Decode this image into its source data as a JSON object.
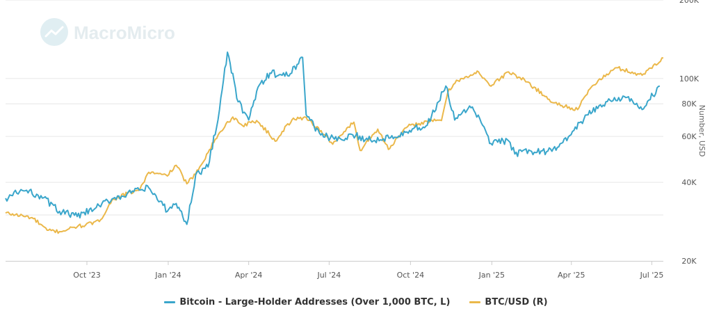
{
  "watermark": {
    "text": "MacroMicro"
  },
  "colors": {
    "holders": "#3aa6cb",
    "btc": "#ebb84a",
    "grid": "#e6e6e6",
    "axis": "#cccccc"
  },
  "chart_data": {
    "type": "line",
    "title": "",
    "x_tick_labels": [
      "Oct '23",
      "Jan '24",
      "Apr '24",
      "Jul '24",
      "Oct '24",
      "Jan '25",
      "Apr '25",
      "Jul '25"
    ],
    "x_range": [
      "2023-07-01",
      "2025-07-14"
    ],
    "right_axis": {
      "label": "Number, USD",
      "scale": "log",
      "range": [
        20000,
        200000
      ],
      "tick_labels": [
        {
          "value": 20000,
          "label": "20K"
        },
        {
          "value": 40000,
          "label": "40K"
        },
        {
          "value": 60000,
          "label": "60K"
        },
        {
          "value": 80000,
          "label": "80K"
        },
        {
          "value": 100000,
          "label": "100K"
        },
        {
          "value": 200000,
          "label": "200K"
        }
      ]
    },
    "series": [
      {
        "name": "Bitcoin - Large-Holder Addresses (Over 1,000 BTC, L)",
        "color": "#3aa6cb",
        "axis": "left",
        "points": [
          [
            "2023-07-01",
            2000
          ],
          [
            "2023-07-20",
            2015
          ],
          [
            "2023-08-10",
            2005
          ],
          [
            "2023-08-31",
            1975
          ],
          [
            "2023-09-20",
            1965
          ],
          [
            "2023-10-10",
            1980
          ],
          [
            "2023-10-31",
            2000
          ],
          [
            "2023-11-20",
            2010
          ],
          [
            "2023-12-10",
            2020
          ],
          [
            "2023-12-31",
            1975
          ],
          [
            "2024-01-10",
            1990
          ],
          [
            "2024-01-22",
            1950
          ],
          [
            "2024-02-01",
            2045
          ],
          [
            "2024-02-15",
            2060
          ],
          [
            "2024-02-28",
            2170
          ],
          [
            "2024-03-08",
            2280
          ],
          [
            "2024-03-20",
            2185
          ],
          [
            "2024-03-27",
            2165
          ],
          [
            "2024-04-01",
            2150
          ],
          [
            "2024-04-10",
            2205
          ],
          [
            "2024-04-25",
            2240
          ],
          [
            "2024-05-15",
            2235
          ],
          [
            "2024-06-01",
            2270
          ],
          [
            "2024-06-05",
            2160
          ],
          [
            "2024-06-20",
            2125
          ],
          [
            "2024-07-10",
            2110
          ],
          [
            "2024-07-31",
            2120
          ],
          [
            "2024-08-20",
            2110
          ],
          [
            "2024-09-10",
            2120
          ],
          [
            "2024-09-30",
            2130
          ],
          [
            "2024-10-20",
            2140
          ],
          [
            "2024-11-10",
            2215
          ],
          [
            "2024-11-20",
            2150
          ],
          [
            "2024-12-10",
            2175
          ],
          [
            "2024-12-20",
            2145
          ],
          [
            "2024-12-31",
            2105
          ],
          [
            "2025-01-20",
            2110
          ],
          [
            "2025-01-27",
            2085
          ],
          [
            "2025-02-15",
            2090
          ],
          [
            "2025-03-10",
            2090
          ],
          [
            "2025-03-30",
            2120
          ],
          [
            "2025-04-20",
            2160
          ],
          [
            "2025-05-10",
            2185
          ],
          [
            "2025-05-31",
            2195
          ],
          [
            "2025-06-20",
            2170
          ],
          [
            "2025-07-10",
            2215
          ]
        ]
      },
      {
        "name": "BTC/USD (R)",
        "color": "#ebb84a",
        "axis": "right",
        "points": [
          [
            "2023-07-01",
            30500
          ],
          [
            "2023-07-31",
            29300
          ],
          [
            "2023-08-17",
            26200
          ],
          [
            "2023-08-31",
            25900
          ],
          [
            "2023-09-20",
            27000
          ],
          [
            "2023-10-15",
            28300
          ],
          [
            "2023-10-31",
            34500
          ],
          [
            "2023-11-30",
            37700
          ],
          [
            "2023-12-10",
            43700
          ],
          [
            "2023-12-31",
            42300
          ],
          [
            "2024-01-10",
            46500
          ],
          [
            "2024-01-22",
            39500
          ],
          [
            "2024-02-01",
            43000
          ],
          [
            "2024-02-15",
            52000
          ],
          [
            "2024-02-28",
            62000
          ],
          [
            "2024-03-14",
            71200
          ],
          [
            "2024-03-25",
            66000
          ],
          [
            "2024-04-10",
            69000
          ],
          [
            "2024-05-01",
            57500
          ],
          [
            "2024-05-20",
            69500
          ],
          [
            "2024-06-05",
            71000
          ],
          [
            "2024-06-25",
            61000
          ],
          [
            "2024-07-05",
            56000
          ],
          [
            "2024-07-29",
            68000
          ],
          [
            "2024-08-05",
            53000
          ],
          [
            "2024-08-25",
            64000
          ],
          [
            "2024-09-06",
            53500
          ],
          [
            "2024-09-28",
            65500
          ],
          [
            "2024-10-20",
            68500
          ],
          [
            "2024-11-05",
            69000
          ],
          [
            "2024-11-12",
            88000
          ],
          [
            "2024-11-22",
            98500
          ],
          [
            "2024-12-05",
            101000
          ],
          [
            "2024-12-17",
            106000
          ],
          [
            "2024-12-31",
            93500
          ],
          [
            "2025-01-20",
            106000
          ],
          [
            "2025-02-10",
            97000
          ],
          [
            "2025-03-10",
            81000
          ],
          [
            "2025-04-08",
            76000
          ],
          [
            "2025-04-25",
            94000
          ],
          [
            "2025-05-22",
            110000
          ],
          [
            "2025-06-20",
            103000
          ],
          [
            "2025-07-14",
            120000
          ]
        ]
      }
    ],
    "grid": true,
    "legend_position": "bottom-center"
  }
}
